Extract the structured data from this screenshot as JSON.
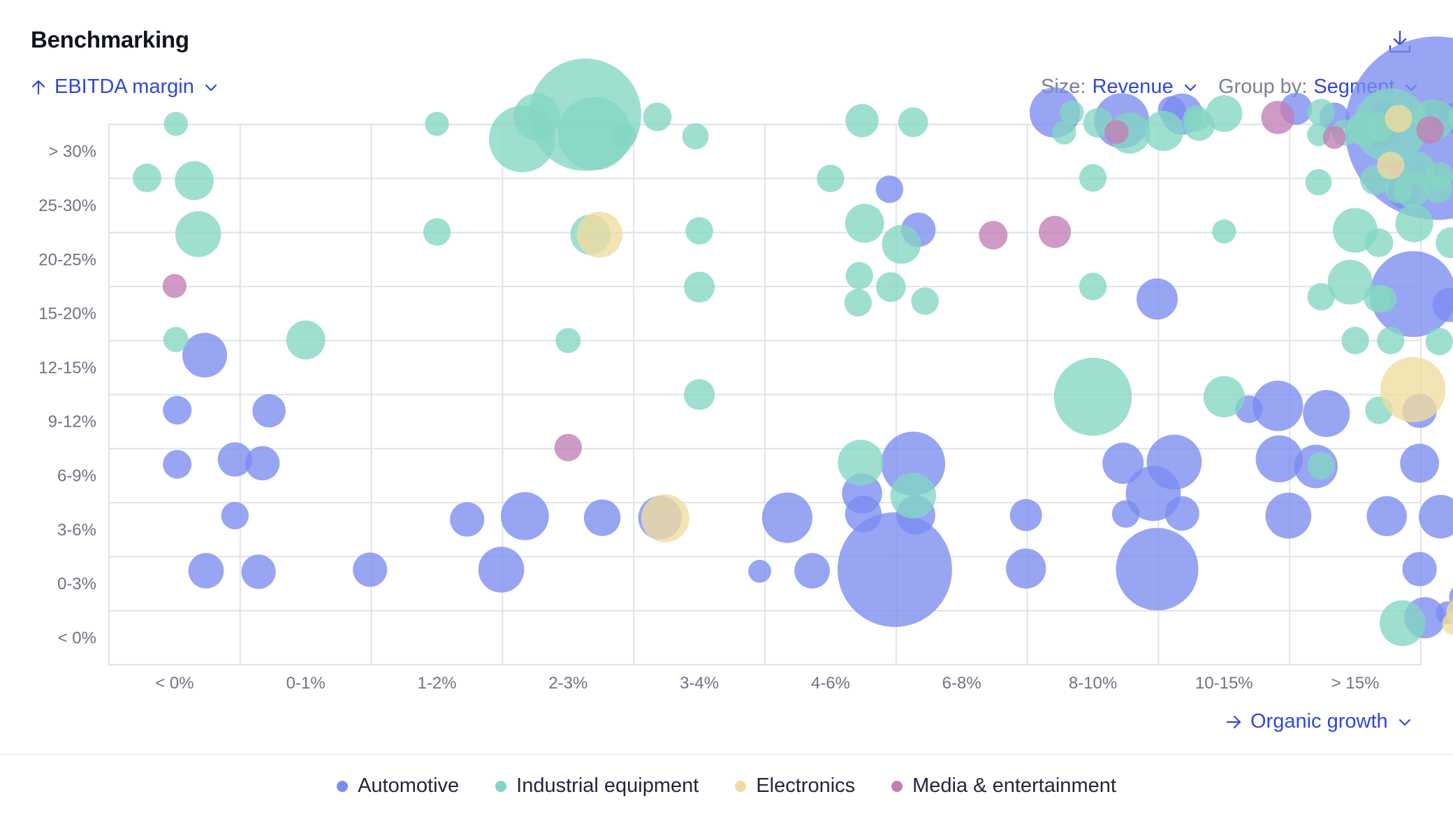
{
  "header": {
    "title": "Benchmarking"
  },
  "icons": {
    "download": "download-icon",
    "y_arrow": "arrow-up-icon",
    "x_arrow": "arrow-right-icon",
    "chevron": "chevron-down-icon"
  },
  "controls": {
    "y_axis": {
      "value": "EBITDA margin"
    },
    "size": {
      "label": "Size:",
      "value": "Revenue"
    },
    "group_by": {
      "label": "Group by:",
      "value": "Segment"
    },
    "x_axis": {
      "value": "Organic growth"
    }
  },
  "legend": [
    {
      "key": "auto",
      "label": "Automotive",
      "color": "#7b8cf0"
    },
    {
      "key": "ind",
      "label": "Industrial equipment",
      "color": "#84d6c3"
    },
    {
      "key": "elec",
      "label": "Electronics",
      "color": "#efdd9e"
    },
    {
      "key": "media",
      "label": "Media & entertainment",
      "color": "#c27db5"
    }
  ],
  "chart_data": {
    "type": "scatter",
    "title": "Benchmarking",
    "xlabel": "Organic growth",
    "ylabel": "EBITDA margin",
    "size_by": "Revenue",
    "group_by": "Segment",
    "x_categories": [
      "< 0%",
      "0-1%",
      "1-2%",
      "2-3%",
      "3-4%",
      "4-6%",
      "6-8%",
      "8-10%",
      "10-15%",
      "> 15%"
    ],
    "y_categories": [
      "< 0%",
      "0-3%",
      "3-6%",
      "6-9%",
      "9-12%",
      "12-15%",
      "15-20%",
      "20-25%",
      "25-30%",
      "> 30%"
    ],
    "note": "x and y are category indices (0 = first category) with fractional offsets for the position of each bubble inside its cell; r is the relative revenue size",
    "series": [
      {
        "name": "Automotive",
        "key": "auto",
        "points": [
          [
            0.23,
            5.23,
            3.9
          ],
          [
            0.02,
            4.21,
            2.5
          ],
          [
            0.72,
            4.2,
            2.9
          ],
          [
            0.02,
            3.21,
            2.5
          ],
          [
            0.46,
            3.3,
            3.0
          ],
          [
            0.67,
            3.23,
            3.0
          ],
          [
            0.46,
            2.26,
            2.4
          ],
          [
            0.24,
            1.24,
            3.1
          ],
          [
            0.64,
            1.22,
            3.0
          ],
          [
            1.49,
            1.26,
            3.0
          ],
          [
            2.23,
            2.19,
            3.0
          ],
          [
            2.67,
            2.25,
            4.2
          ],
          [
            2.49,
            1.26,
            4.0
          ],
          [
            3.26,
            2.22,
            3.2
          ],
          [
            3.7,
            2.22,
            3.8
          ],
          [
            4.46,
            1.23,
            2.0
          ],
          [
            4.86,
            1.24,
            3.1
          ],
          [
            4.67,
            2.22,
            4.4
          ],
          [
            5.45,
            8.3,
            2.4
          ],
          [
            5.67,
            7.55,
            3.0
          ],
          [
            5.63,
            3.22,
            5.6
          ],
          [
            5.24,
            2.67,
            3.5
          ],
          [
            5.25,
            2.29,
            3.2
          ],
          [
            5.65,
            2.27,
            3.4
          ],
          [
            5.49,
            1.26,
            10.0
          ],
          [
            6.71,
            9.72,
            4.4
          ],
          [
            6.49,
            2.27,
            2.8
          ],
          [
            6.49,
            1.28,
            3.5
          ],
          [
            7.22,
            9.57,
            4.8
          ],
          [
            7.6,
            9.77,
            2.4
          ],
          [
            7.68,
            9.69,
            3.6
          ],
          [
            7.49,
            6.27,
            3.6
          ],
          [
            7.23,
            3.23,
            3.6
          ],
          [
            7.62,
            3.25,
            4.8
          ],
          [
            7.46,
            2.67,
            4.8
          ],
          [
            7.25,
            2.29,
            2.4
          ],
          [
            7.68,
            2.3,
            3.0
          ],
          [
            7.49,
            1.27,
            7.2
          ],
          [
            8.55,
            9.79,
            2.8
          ],
          [
            8.84,
            9.63,
            2.6
          ],
          [
            8.41,
            4.29,
            4.4
          ],
          [
            8.78,
            4.15,
            4.1
          ],
          [
            8.19,
            4.23,
            2.4
          ],
          [
            8.42,
            3.31,
            4.1
          ],
          [
            8.7,
            3.17,
            3.8
          ],
          [
            8.49,
            2.26,
            4.0
          ],
          [
            9.22,
            9.72,
            2.0
          ],
          [
            9.62,
            9.75,
            2.2
          ],
          [
            9.76,
            9.62,
            2.7
          ],
          [
            9.62,
            9.43,
            16.0
          ],
          [
            9.18,
            9.38,
            2.8
          ],
          [
            9.37,
            8.24,
            2.8
          ],
          [
            9.44,
            6.36,
            7.5
          ],
          [
            9.72,
            6.16,
            3.0
          ],
          [
            9.49,
            4.2,
            3.0
          ],
          [
            9.49,
            3.23,
            3.4
          ],
          [
            9.24,
            2.25,
            3.5
          ],
          [
            9.65,
            2.24,
            3.8
          ],
          [
            9.49,
            1.27,
            3.0
          ],
          [
            9.82,
            0.75,
            2.4
          ],
          [
            9.53,
            0.37,
            3.6
          ],
          [
            9.7,
            0.46,
            2.0
          ]
        ]
      },
      {
        "name": "Industrial equipment",
        "key": "ind",
        "points": [
          [
            0.01,
            9.51,
            2.1
          ],
          [
            -0.21,
            8.51,
            2.5
          ],
          [
            0.15,
            8.46,
            3.4
          ],
          [
            0.18,
            7.47,
            4.0
          ],
          [
            0.01,
            5.52,
            2.2
          ],
          [
            1.0,
            5.51,
            3.4
          ],
          [
            2.0,
            9.51,
            2.1
          ],
          [
            2.0,
            7.51,
            2.4
          ],
          [
            2.76,
            9.64,
            4.1
          ],
          [
            3.13,
            9.68,
            9.8
          ],
          [
            2.65,
            9.23,
            5.8
          ],
          [
            3.2,
            9.33,
            6.4
          ],
          [
            3.17,
            7.46,
            3.5
          ],
          [
            3.0,
            5.5,
            2.2
          ],
          [
            3.68,
            9.64,
            2.5
          ],
          [
            3.43,
            9.3,
            2.1
          ],
          [
            3.97,
            9.28,
            2.3
          ],
          [
            4.0,
            7.53,
            2.4
          ],
          [
            4.0,
            6.49,
            2.7
          ],
          [
            4.0,
            4.5,
            2.7
          ],
          [
            5.24,
            9.57,
            2.9
          ],
          [
            5.63,
            9.54,
            2.6
          ],
          [
            5.0,
            8.5,
            2.4
          ],
          [
            5.26,
            7.67,
            3.4
          ],
          [
            5.54,
            7.28,
            3.4
          ],
          [
            5.22,
            6.7,
            2.4
          ],
          [
            5.46,
            6.49,
            2.6
          ],
          [
            5.21,
            6.2,
            2.4
          ],
          [
            5.72,
            6.23,
            2.4
          ],
          [
            5.23,
            3.24,
            4.0
          ],
          [
            5.63,
            2.63,
            4.0
          ],
          [
            6.84,
            9.72,
            2.1
          ],
          [
            7.04,
            9.53,
            2.6
          ],
          [
            6.78,
            9.35,
            2.1
          ],
          [
            7.28,
            9.34,
            3.6
          ],
          [
            7.0,
            8.51,
            2.4
          ],
          [
            7.0,
            6.5,
            2.4
          ],
          [
            7.0,
            4.46,
            6.8
          ],
          [
            7.54,
            9.38,
            3.5
          ],
          [
            7.79,
            9.61,
            2.3
          ],
          [
            7.81,
            9.48,
            2.7
          ],
          [
            8.0,
            9.7,
            3.2
          ],
          [
            8.0,
            7.52,
            2.1
          ],
          [
            8.0,
            4.46,
            3.6
          ],
          [
            8.74,
            9.72,
            2.4
          ],
          [
            8.72,
            9.31,
            2.0
          ],
          [
            8.92,
            9.35,
            2.3
          ],
          [
            9.07,
            9.42,
            3.0
          ],
          [
            8.72,
            8.43,
            2.3
          ],
          [
            9.15,
            8.47,
            2.6
          ],
          [
            9.0,
            7.54,
            3.9
          ],
          [
            8.74,
            6.31,
            2.4
          ],
          [
            8.96,
            6.58,
            3.9
          ],
          [
            9.21,
            6.27,
            2.4
          ],
          [
            9.0,
            5.5,
            2.4
          ],
          [
            8.74,
            3.18,
            2.4
          ],
          [
            9.27,
            9.48,
            6.5
          ],
          [
            9.6,
            9.59,
            3.6
          ],
          [
            9.84,
            9.63,
            3.0
          ],
          [
            9.18,
            9.45,
            2.6
          ],
          [
            9.48,
            8.68,
            2.9
          ],
          [
            9.64,
            8.55,
            2.4
          ],
          [
            9.33,
            8.3,
            2.4
          ],
          [
            9.43,
            8.29,
            3.1
          ],
          [
            9.63,
            8.31,
            2.5
          ],
          [
            9.45,
            7.67,
            3.3
          ],
          [
            9.73,
            7.31,
            2.7
          ],
          [
            9.18,
            7.31,
            2.5
          ],
          [
            9.17,
            6.28,
            2.4
          ],
          [
            9.27,
            5.5,
            2.4
          ],
          [
            9.64,
            5.48,
            2.4
          ],
          [
            9.18,
            4.21,
            2.4
          ],
          [
            9.36,
            0.27,
            4.0
          ]
        ]
      },
      {
        "name": "Electronics",
        "key": "elec",
        "points": [
          [
            3.24,
            7.46,
            4.0
          ],
          [
            3.74,
            2.21,
            4.2
          ],
          [
            9.33,
            9.61,
            2.4
          ],
          [
            9.27,
            8.74,
            2.4
          ],
          [
            9.44,
            4.59,
            5.7
          ],
          [
            9.8,
            0.48,
            2.4
          ],
          [
            9.75,
            0.26,
            2.0
          ]
        ]
      },
      {
        "name": "Media & entertainment",
        "key": "media",
        "points": [
          [
            0.0,
            6.51,
            2.1
          ],
          [
            3.0,
            3.52,
            2.4
          ],
          [
            6.24,
            7.45,
            2.5
          ],
          [
            6.71,
            7.51,
            2.8
          ],
          [
            7.18,
            9.36,
            2.1
          ],
          [
            8.41,
            9.63,
            2.9
          ],
          [
            8.84,
            9.26,
            2.0
          ],
          [
            9.57,
            9.4,
            2.4
          ]
        ]
      }
    ]
  }
}
